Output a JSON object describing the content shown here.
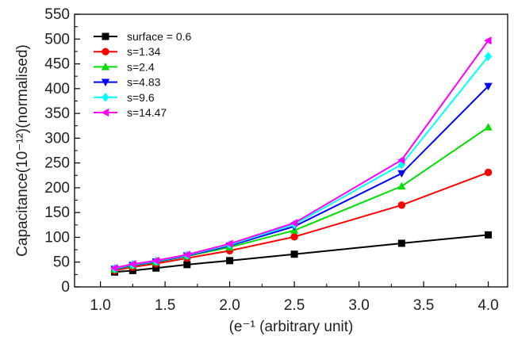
{
  "chart_data": {
    "type": "line",
    "xlabel": "(e⁻¹ (arbitrary unit)",
    "ylabel": "Capacitance(10⁻¹²)(normalised)",
    "xlim": [
      0.8,
      4.15
    ],
    "ylim": [
      0,
      550
    ],
    "xticks": [
      1.0,
      1.5,
      2.0,
      2.5,
      3.0,
      3.5,
      4.0
    ],
    "xtick_labels": [
      "1.0",
      "1.5",
      "2.0",
      "2.5",
      "3.0",
      "3.5",
      "4.0"
    ],
    "yticks": [
      0,
      50,
      100,
      150,
      200,
      250,
      300,
      350,
      400,
      450,
      500,
      550
    ],
    "ytick_labels": [
      "0",
      "50",
      "100",
      "150",
      "200",
      "250",
      "300",
      "350",
      "400",
      "450",
      "500",
      "550"
    ],
    "grid": false,
    "legend_position": "top-left",
    "x": [
      1.11,
      1.25,
      1.43,
      1.67,
      2.0,
      2.5,
      3.33,
      4.0
    ],
    "series": [
      {
        "name": "surface = 0.6",
        "color": "#000000",
        "marker": "square",
        "values": [
          30,
          33,
          38,
          45,
          53,
          66,
          88,
          105
        ]
      },
      {
        "name": "s=1.34",
        "color": "#ff0000",
        "marker": "circle",
        "values": [
          33,
          40,
          47,
          58,
          73,
          101,
          165,
          231
        ]
      },
      {
        "name": "s=2.4",
        "color": "#00dd00",
        "marker": "triangle-up",
        "values": [
          35,
          43,
          50,
          62,
          80,
          114,
          203,
          322
        ]
      },
      {
        "name": "s=4.83",
        "color": "#0000ff",
        "marker": "triangle-down",
        "values": [
          36,
          44,
          51,
          63,
          83,
          122,
          229,
          405
        ]
      },
      {
        "name": "s=9.6",
        "color": "#00ffff",
        "marker": "diamond",
        "values": [
          37,
          45,
          52,
          64,
          85,
          126,
          247,
          465
        ]
      },
      {
        "name": "s=14.47",
        "color": "#ff00ff",
        "marker": "triangle-left",
        "values": [
          38,
          46,
          53,
          65,
          87,
          129,
          256,
          497
        ]
      }
    ]
  }
}
